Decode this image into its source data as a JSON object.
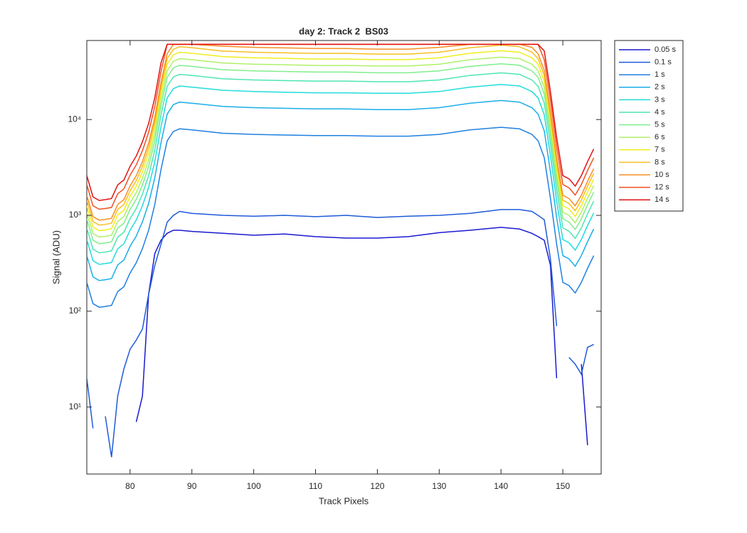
{
  "chart_data": {
    "type": "line",
    "title": "day 2: Track 2  BS03",
    "xlabel": "Track Pixels",
    "ylabel": "Signal (ADU)",
    "yscale": "log",
    "legend": "northeastoutside",
    "xlim": [
      73,
      156.2
    ],
    "ylim": [
      2,
      66800
    ],
    "xticks": [
      80,
      90,
      100,
      110,
      120,
      130,
      140,
      150
    ],
    "yticks": [
      {
        "value": 10,
        "label": "10¹"
      },
      {
        "value": 100,
        "label": "10²"
      },
      {
        "value": 1000,
        "label": "10³"
      },
      {
        "value": 10000,
        "label": "10⁴"
      }
    ],
    "x": [
      73,
      74,
      75,
      76,
      77,
      78,
      79,
      80,
      81,
      82,
      83,
      84,
      85,
      86,
      87,
      88,
      90,
      95,
      100,
      105,
      110,
      115,
      120,
      125,
      130,
      135,
      140,
      143,
      145,
      146,
      147,
      148,
      149,
      150,
      151,
      152,
      153,
      154,
      155
    ],
    "series": [
      {
        "name": "0.05 s",
        "color": "#1a1ad0",
        "values": [
          null,
          null,
          null,
          null,
          null,
          null,
          null,
          null,
          7,
          13,
          150,
          400,
          550,
          650,
          700,
          700,
          680,
          650,
          620,
          640,
          600,
          580,
          580,
          600,
          660,
          700,
          750,
          720,
          650,
          600,
          550,
          300,
          20,
          null,
          null,
          null,
          28,
          4,
          null
        ]
      },
      {
        "name": "0.1 s",
        "color": "#1f5ad8",
        "values": [
          20,
          6,
          null,
          8,
          3,
          13,
          25,
          40,
          50,
          65,
          150,
          300,
          500,
          850,
          1000,
          1100,
          1050,
          1000,
          980,
          1000,
          970,
          1000,
          950,
          980,
          1000,
          1050,
          1150,
          1150,
          1100,
          1000,
          900,
          350,
          70,
          null,
          33,
          28,
          22,
          42,
          45
        ]
      },
      {
        "name": "1 s",
        "color": "#1f80e0",
        "values": [
          200,
          120,
          110,
          112,
          115,
          160,
          180,
          250,
          320,
          450,
          700,
          1300,
          3000,
          6000,
          7500,
          8000,
          7800,
          7200,
          7000,
          6900,
          6800,
          6800,
          6700,
          6700,
          7000,
          7800,
          8300,
          8000,
          7000,
          6000,
          4000,
          1500,
          500,
          200,
          185,
          155,
          200,
          280,
          380
        ]
      },
      {
        "name": "2 s",
        "color": "#1aaee8",
        "values": [
          380,
          228,
          209,
          213,
          219,
          304,
          342,
          475,
          608,
          855,
          1330,
          2470,
          5700,
          11400,
          14300,
          15200,
          14800,
          13700,
          13300,
          13100,
          12900,
          12900,
          12700,
          12700,
          13300,
          14800,
          15800,
          15200,
          13300,
          11400,
          7600,
          2850,
          950,
          380,
          352,
          295,
          380,
          532,
          722
        ]
      },
      {
        "name": "3 s",
        "color": "#22dcdc",
        "values": [
          560,
          336,
          308,
          314,
          322,
          448,
          504,
          700,
          896,
          1260,
          1960,
          3640,
          8400,
          16800,
          21000,
          22400,
          21800,
          20200,
          19600,
          19300,
          19000,
          19000,
          18800,
          18800,
          19600,
          21800,
          23200,
          22400,
          19600,
          16800,
          11200,
          4200,
          1400,
          560,
          518,
          434,
          560,
          784,
          1060
        ]
      },
      {
        "name": "4 s",
        "color": "#4ee6b2",
        "values": [
          740,
          444,
          407,
          414,
          426,
          592,
          666,
          925,
          1180,
          1670,
          2590,
          4810,
          11100,
          22200,
          27800,
          29600,
          28900,
          26600,
          25900,
          25500,
          25200,
          25200,
          24800,
          24800,
          25900,
          28900,
          30700,
          29600,
          25900,
          22200,
          14800,
          5550,
          1850,
          740,
          685,
          574,
          740,
          1040,
          1410
        ]
      },
      {
        "name": "5 s",
        "color": "#80ee8c",
        "values": [
          920,
          552,
          506,
          515,
          529,
          736,
          828,
          1150,
          1470,
          2070,
          3220,
          5980,
          13800,
          27600,
          34500,
          36800,
          35900,
          33100,
          32200,
          31700,
          31300,
          31300,
          30800,
          30800,
          32200,
          35900,
          38200,
          36800,
          32200,
          27600,
          18400,
          6900,
          2300,
          920,
          851,
          713,
          920,
          1290,
          1750
        ]
      },
      {
        "name": "6 s",
        "color": "#b0f06a",
        "values": [
          1080,
          648,
          594,
          605,
          621,
          864,
          972,
          1350,
          1730,
          2430,
          3780,
          7020,
          16200,
          32400,
          40500,
          43200,
          42100,
          38900,
          37800,
          37300,
          36700,
          36700,
          36200,
          36200,
          37800,
          42100,
          44800,
          43200,
          37800,
          32400,
          21600,
          8100,
          2700,
          1080,
          999,
          837,
          1080,
          1510,
          2050
        ]
      },
      {
        "name": "7 s",
        "color": "#f0ee1e",
        "values": [
          1260,
          756,
          693,
          706,
          725,
          1010,
          1130,
          1580,
          2020,
          2840,
          4410,
          8190,
          18900,
          37800,
          47300,
          50400,
          49100,
          45400,
          44100,
          43500,
          42800,
          42800,
          42200,
          42200,
          44100,
          49100,
          52300,
          50400,
          44100,
          37800,
          25200,
          9450,
          3150,
          1260,
          1170,
          977,
          1260,
          1760,
          2390
        ]
      },
      {
        "name": "8 s",
        "color": "#f8be22",
        "values": [
          1440,
          864,
          792,
          806,
          828,
          1150,
          1300,
          1800,
          2300,
          3240,
          5040,
          9360,
          21600,
          43200,
          54000,
          57600,
          56200,
          51800,
          50400,
          49700,
          49000,
          49000,
          48200,
          48200,
          50400,
          56200,
          59800,
          57600,
          50400,
          43200,
          28800,
          10800,
          3600,
          1440,
          1330,
          1120,
          1440,
          2020,
          2740
        ]
      },
      {
        "name": "10 s",
        "color": "#f88e22",
        "values": [
          1620,
          972,
          891,
          907,
          932,
          1300,
          1460,
          2030,
          2590,
          3650,
          5670,
          10500,
          24300,
          48600,
          60800,
          61000,
          61000,
          58300,
          56700,
          55900,
          55100,
          55100,
          54300,
          54300,
          56700,
          61000,
          61000,
          61000,
          56700,
          48600,
          32400,
          12200,
          4050,
          1620,
          1500,
          1260,
          1620,
          2270,
          3080
        ]
      },
      {
        "name": "12 s",
        "color": "#f05020",
        "values": [
          2100,
          1260,
          1160,
          1180,
          1210,
          1680,
          1890,
          2630,
          3360,
          4730,
          7350,
          13700,
          31500,
          61000,
          61000,
          61000,
          61000,
          61000,
          61000,
          61000,
          61000,
          61000,
          61000,
          61000,
          61000,
          61000,
          61000,
          61000,
          61000,
          61000,
          42000,
          15800,
          5250,
          2100,
          1940,
          1630,
          2100,
          2940,
          3990
        ]
      },
      {
        "name": "14 s",
        "color": "#e01212",
        "values": [
          2600,
          1560,
          1430,
          1460,
          1500,
          2080,
          2340,
          3250,
          4160,
          5850,
          9100,
          16900,
          39000,
          61000,
          61000,
          61000,
          61000,
          61000,
          61000,
          61000,
          61000,
          61000,
          61000,
          61000,
          61000,
          61000,
          61000,
          61000,
          61000,
          61000,
          52000,
          19500,
          6500,
          2600,
          2410,
          2020,
          2600,
          3640,
          4940
        ]
      }
    ]
  }
}
